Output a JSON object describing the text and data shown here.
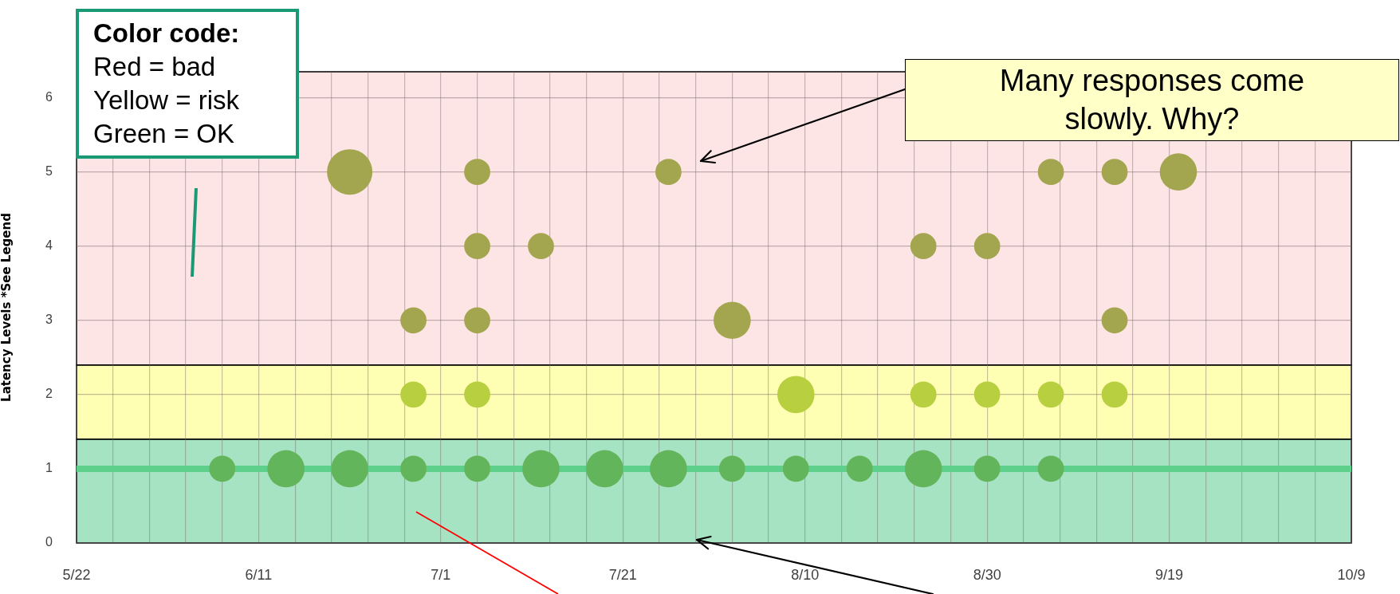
{
  "chart_data": {
    "type": "bubble",
    "ylabel": "Latency Levels *See Legend",
    "xlim": [
      "--05-22",
      "--10-09"
    ],
    "xticks": [
      {
        "value": "--05-22",
        "label": "5/22"
      },
      {
        "value": "--05-26",
        "label": null
      },
      {
        "value": "--05-30",
        "label": null
      },
      {
        "value": "--06-03",
        "label": null
      },
      {
        "value": "--06-07",
        "label": null
      },
      {
        "value": "--06-11",
        "label": "6/11"
      },
      {
        "value": "--06-15",
        "label": null
      },
      {
        "value": "--06-19",
        "label": null
      },
      {
        "value": "--06-23",
        "label": null
      },
      {
        "value": "--06-27",
        "label": null
      },
      {
        "value": "--07-01",
        "label": "7/1"
      },
      {
        "value": "--07-05",
        "label": null
      },
      {
        "value": "--07-09",
        "label": null
      },
      {
        "value": "--07-13",
        "label": null
      },
      {
        "value": "--07-17",
        "label": null
      },
      {
        "value": "--07-21",
        "label": "7/21"
      },
      {
        "value": "--07-25",
        "label": null
      },
      {
        "value": "--07-29",
        "label": null
      },
      {
        "value": "--08-02",
        "label": null
      },
      {
        "value": "--08-06",
        "label": null
      },
      {
        "value": "--08-10",
        "label": "8/10"
      },
      {
        "value": "--08-14",
        "label": null
      },
      {
        "value": "--08-18",
        "label": null
      },
      {
        "value": "--08-22",
        "label": null
      },
      {
        "value": "--08-26",
        "label": null
      },
      {
        "value": "--08-30",
        "label": "8/30"
      },
      {
        "value": "--09-03",
        "label": null
      },
      {
        "value": "--09-07",
        "label": null
      },
      {
        "value": "--09-11",
        "label": null
      },
      {
        "value": "--09-15",
        "label": null
      },
      {
        "value": "--09-19",
        "label": "9/19"
      },
      {
        "value": "--09-23",
        "label": null
      },
      {
        "value": "--09-27",
        "label": null
      },
      {
        "value": "--10-01",
        "label": null
      },
      {
        "value": "--10-05",
        "label": null
      },
      {
        "value": "--10-09",
        "label": "10/9"
      }
    ],
    "ylim": [
      0,
      6.35
    ],
    "yticks": [
      0,
      1,
      2,
      3,
      4,
      5,
      6
    ],
    "grid": true,
    "legend": false,
    "series": [
      {
        "color": "#62b55a",
        "x": [
          "--06-07",
          "--06-14",
          "--06-21",
          "--06-28",
          "--07-05",
          "--07-12",
          "--07-19",
          "--07-26",
          "--08-02",
          "--08-09",
          "--08-16",
          "--08-23",
          "--08-30",
          "--09-06"
        ],
        "values": [
          1,
          1,
          1,
          1,
          1,
          1,
          1,
          1,
          1,
          1,
          1,
          1,
          1,
          1
        ],
        "sizes": [
          0.33,
          0.67,
          0.67,
          0.33,
          0.33,
          0.67,
          0.67,
          0.67,
          0.33,
          0.33,
          0.33,
          0.67,
          0.33,
          0.33
        ]
      },
      {
        "color": "#b8cf40",
        "x": [
          "--06-28",
          "--07-05",
          "--08-09",
          "--08-23",
          "--08-30",
          "--09-06",
          "--09-13"
        ],
        "values": [
          2,
          2,
          2,
          2,
          2,
          2,
          2
        ],
        "sizes": [
          0.33,
          0.33,
          0.67,
          0.33,
          0.33,
          0.33,
          0.33
        ]
      },
      {
        "color": "#a3a64e",
        "x": [
          "--06-28",
          "--07-05",
          "--08-02",
          "--09-13"
        ],
        "values": [
          3,
          3,
          3,
          3
        ],
        "sizes": [
          0.33,
          0.33,
          0.67,
          0.33
        ]
      },
      {
        "color": "#a3a64e",
        "x": [
          "--07-05",
          "--07-12",
          "--08-23",
          "--08-30"
        ],
        "values": [
          4,
          4,
          4,
          4
        ],
        "sizes": [
          0.33,
          0.33,
          0.33,
          0.33
        ]
      },
      {
        "color": "#a3a64e",
        "x": [
          "--06-21",
          "--07-05",
          "--07-26",
          "--09-06",
          "--09-13",
          "--09-20"
        ],
        "values": [
          5,
          5,
          5,
          5,
          5,
          5
        ],
        "sizes": [
          1,
          0.33,
          0.33,
          0.33,
          0.33,
          0.67
        ]
      }
    ],
    "ref_lines": [
      {
        "axis": "y",
        "value": 1,
        "color": "#5fcf8c"
      }
    ],
    "bands": [
      {
        "axis": "y",
        "from": 0,
        "to": 1.4,
        "color": "#a6e3c2"
      },
      {
        "axis": "y",
        "from": 1.4,
        "to": 2.4,
        "color": "#ffffb3"
      },
      {
        "axis": "y",
        "from": 2.4,
        "to": 6.35,
        "color": "#fde4e5"
      }
    ],
    "annotations": [
      "Color code:\nRed = bad\nYellow = risk\nGreen = OK",
      "Many responses come slowly. Why?"
    ]
  }
}
